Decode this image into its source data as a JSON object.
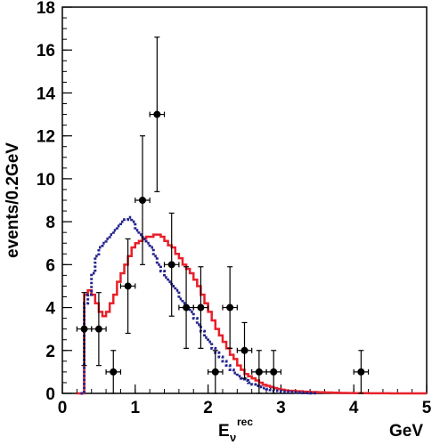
{
  "chart_data": {
    "type": "line",
    "title": "",
    "xlabel_main": "E",
    "xlabel_sub": "ν",
    "xlabel_sup": "rec",
    "xunit": "GeV",
    "ylabel": "events/0.2GeV",
    "xlim": [
      0,
      5
    ],
    "ylim": [
      0,
      18
    ],
    "xticks": [
      0,
      1,
      2,
      3,
      4,
      5
    ],
    "yticks": [
      0,
      2,
      4,
      6,
      8,
      10,
      12,
      14,
      16,
      18
    ],
    "grid": false,
    "legend": "none",
    "data_points": {
      "x": [
        0.3,
        0.5,
        0.7,
        0.9,
        1.1,
        1.3,
        1.5,
        1.7,
        1.9,
        2.1,
        2.3,
        2.5,
        2.7,
        2.9,
        4.1
      ],
      "y": [
        3,
        3,
        1,
        5,
        9,
        13,
        6,
        4,
        4,
        1,
        4,
        2,
        1,
        1,
        1
      ],
      "xerr": [
        0.1,
        0.1,
        0.1,
        0.1,
        0.1,
        0.1,
        0.1,
        0.1,
        0.1,
        0.1,
        0.1,
        0.1,
        0.1,
        0.1,
        0.1
      ],
      "ylow": [
        1.3,
        1.3,
        0.0,
        2.8,
        6.0,
        9.4,
        3.6,
        2.1,
        2.1,
        0.0,
        2.1,
        0.7,
        0.0,
        0.0,
        0.0
      ],
      "yhigh": [
        4.7,
        4.7,
        2.0,
        7.2,
        12.0,
        16.6,
        8.4,
        5.9,
        5.9,
        2.0,
        5.9,
        3.3,
        2.0,
        2.0,
        2.0
      ]
    },
    "series": [
      {
        "style": "solid-step",
        "color": "#e8202a",
        "x": [
          0.2,
          0.25,
          0.3,
          0.35,
          0.4,
          0.45,
          0.5,
          0.55,
          0.6,
          0.65,
          0.7,
          0.75,
          0.8,
          0.85,
          0.9,
          0.95,
          1.0,
          1.05,
          1.1,
          1.15,
          1.2,
          1.25,
          1.3,
          1.35,
          1.4,
          1.45,
          1.5,
          1.55,
          1.6,
          1.65,
          1.7,
          1.75,
          1.8,
          1.85,
          1.9,
          1.95,
          2.0,
          2.05,
          2.1,
          2.15,
          2.2,
          2.25,
          2.3,
          2.35,
          2.4,
          2.45,
          2.5,
          2.55,
          2.6,
          2.65,
          2.7,
          2.75,
          2.8,
          2.85,
          2.9,
          2.95,
          3.0,
          3.05,
          3.1,
          3.2,
          3.3,
          3.4,
          3.5,
          3.6,
          3.7,
          3.8,
          3.9,
          4.0,
          4.1,
          4.2,
          4.3,
          4.4,
          4.5,
          4.6,
          4.7,
          4.8,
          4.9,
          5.0
        ],
        "y": [
          0.0,
          0.0,
          4.6,
          4.8,
          4.6,
          4.2,
          3.8,
          3.6,
          3.8,
          4.2,
          4.6,
          5.2,
          5.6,
          6.0,
          6.4,
          6.8,
          7.0,
          7.1,
          7.2,
          7.3,
          7.3,
          7.4,
          7.4,
          7.3,
          7.1,
          6.9,
          6.8,
          6.5,
          6.3,
          6.0,
          5.8,
          5.6,
          5.3,
          5.0,
          4.6,
          4.2,
          3.8,
          3.4,
          3.0,
          2.7,
          2.4,
          2.1,
          1.8,
          1.6,
          1.3,
          1.1,
          0.9,
          0.8,
          0.7,
          0.6,
          0.5,
          0.4,
          0.35,
          0.3,
          0.25,
          0.2,
          0.17,
          0.14,
          0.12,
          0.1,
          0.08,
          0.06,
          0.05,
          0.04,
          0.03,
          0.02,
          0.015,
          0.01,
          0.008,
          0.006,
          0.004,
          0.003,
          0.002,
          0.001,
          0.0,
          0.0,
          0.0,
          0.0
        ]
      },
      {
        "style": "dotted-step",
        "color": "#23238e",
        "x": [
          0.25,
          0.3,
          0.35,
          0.4,
          0.45,
          0.5,
          0.55,
          0.6,
          0.65,
          0.7,
          0.75,
          0.8,
          0.85,
          0.9,
          0.95,
          1.0,
          1.05,
          1.1,
          1.15,
          1.2,
          1.25,
          1.3,
          1.35,
          1.4,
          1.45,
          1.5,
          1.55,
          1.6,
          1.65,
          1.7,
          1.75,
          1.8,
          1.85,
          1.9,
          1.95,
          2.0,
          2.05,
          2.1,
          2.15,
          2.2,
          2.25,
          2.3,
          2.35,
          2.4,
          2.45,
          2.5,
          2.55,
          2.6,
          2.65,
          2.7,
          2.75,
          2.8,
          2.85,
          2.9,
          3.0,
          3.1,
          3.2,
          3.3,
          3.4,
          3.5
        ],
        "y": [
          0.0,
          4.2,
          4.6,
          5.6,
          6.4,
          6.8,
          7.0,
          7.2,
          7.4,
          7.6,
          7.8,
          8.0,
          8.1,
          8.2,
          8.0,
          7.6,
          7.4,
          7.2,
          7.0,
          6.8,
          6.4,
          6.0,
          5.7,
          5.4,
          5.2,
          5.0,
          4.8,
          4.4,
          4.2,
          4.0,
          3.8,
          3.5,
          3.2,
          2.9,
          2.6,
          2.4,
          2.1,
          1.9,
          1.7,
          1.5,
          1.3,
          1.1,
          0.95,
          0.8,
          0.7,
          0.6,
          0.5,
          0.42,
          0.35,
          0.3,
          0.25,
          0.2,
          0.16,
          0.12,
          0.09,
          0.06,
          0.04,
          0.02,
          0.01,
          0.0
        ]
      }
    ]
  }
}
